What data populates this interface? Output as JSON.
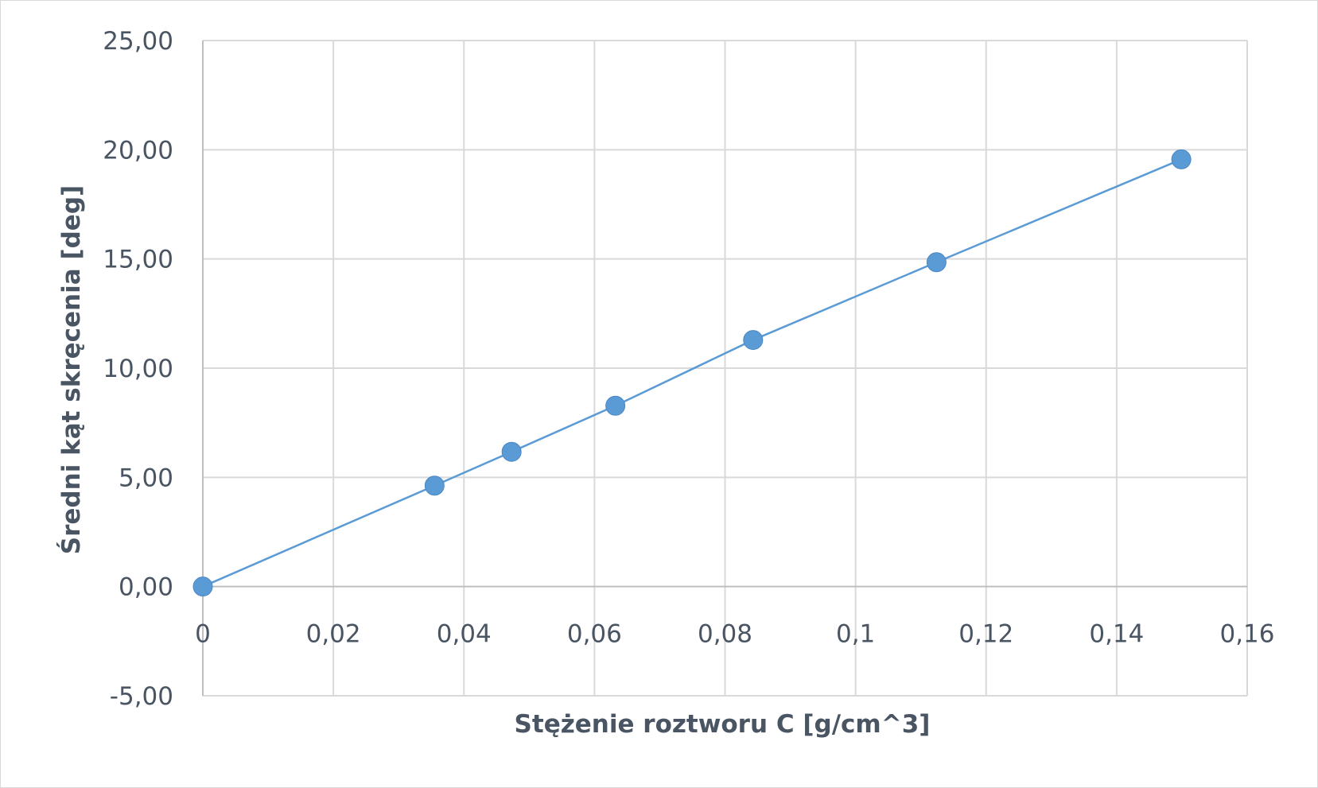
{
  "chart_data": {
    "type": "scatter",
    "xlabel": "Stężenie roztworu C [g/cm^3]",
    "ylabel": "Średni kąt skręcenia [deg]",
    "xlim": [
      0,
      0.16
    ],
    "ylim": [
      -5,
      25
    ],
    "x_ticks": [
      0,
      0.02,
      0.04,
      0.06,
      0.08,
      0.1,
      0.12,
      0.14,
      0.16
    ],
    "x_tick_labels": [
      "0",
      "0,02",
      "0,04",
      "0,06",
      "0,08",
      "0,1",
      "0,12",
      "0,14",
      "0,16"
    ],
    "y_ticks": [
      -5,
      0,
      5,
      10,
      15,
      20,
      25
    ],
    "y_tick_labels": [
      "-5,00",
      "0,00",
      "5,00",
      "10,00",
      "15,00",
      "20,00",
      "25,00"
    ],
    "grid": true,
    "legend": "none",
    "series": [
      {
        "x": [
          0,
          0.0355,
          0.0473,
          0.0632,
          0.0843,
          0.1124,
          0.1499
        ],
        "y": [
          0.0,
          4.62,
          6.17,
          8.28,
          11.29,
          14.85,
          19.56
        ],
        "marker_color": "#5b9bd5",
        "line_color": "#5b9bd5",
        "connected": true
      }
    ]
  }
}
